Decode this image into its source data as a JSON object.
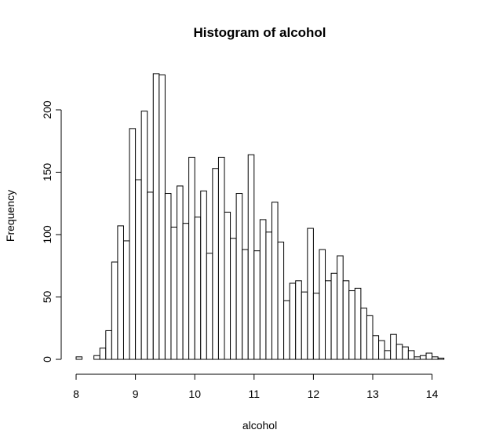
{
  "chart_data": {
    "type": "bar",
    "title": "Histogram of alcohol",
    "xlabel": "alcohol",
    "ylabel": "Frequency",
    "bin_width": 0.1,
    "bin_start": 8.0,
    "xlim": [
      8.0,
      14.2
    ],
    "ylim": [
      0,
      230
    ],
    "x_ticks": [
      8,
      9,
      10,
      11,
      12,
      13,
      14
    ],
    "y_ticks": [
      0,
      50,
      100,
      150,
      200
    ],
    "values": [
      2,
      0,
      0,
      3,
      9,
      23,
      78,
      107,
      95,
      185,
      144,
      199,
      134,
      229,
      228,
      133,
      106,
      139,
      109,
      162,
      114,
      135,
      85,
      153,
      162,
      118,
      97,
      133,
      88,
      164,
      87,
      112,
      102,
      126,
      94,
      47,
      61,
      63,
      54,
      105,
      53,
      88,
      63,
      69,
      83,
      63,
      55,
      57,
      41,
      35,
      19,
      15,
      7,
      20,
      12,
      10,
      7,
      2,
      3,
      5,
      2,
      1
    ],
    "grid": false,
    "legend": false
  }
}
